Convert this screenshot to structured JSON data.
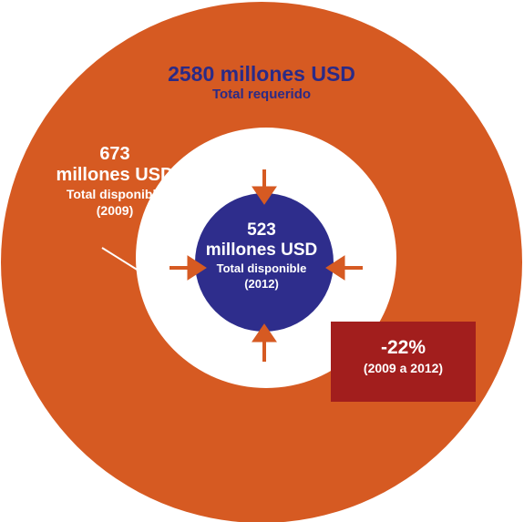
{
  "colors": {
    "outer_ring": "#d65a22",
    "inner_gap": "#ffffff",
    "core_circle": "#2e2d8c",
    "arrows": "#d65a22",
    "change_box": "#a21e1d",
    "outer_text": "#2b2a86",
    "light_text": "#ffffff"
  },
  "outer_circle": {
    "amount": "2580 millones USD",
    "caption": "Total requerido"
  },
  "middle_circle": {
    "amount_number": "673",
    "amount_unit": "millones USD",
    "caption": "Total disponible",
    "year": "(2009)"
  },
  "inner_circle": {
    "amount_number": "523",
    "amount_unit": "millones USD",
    "caption": "Total disponible",
    "year": "(2012)"
  },
  "change": {
    "percent": "-22%",
    "period": "(2009 a 2012)"
  },
  "icons": [
    "arrow-down-icon",
    "arrow-up-icon",
    "arrow-right-icon",
    "arrow-left-icon"
  ]
}
